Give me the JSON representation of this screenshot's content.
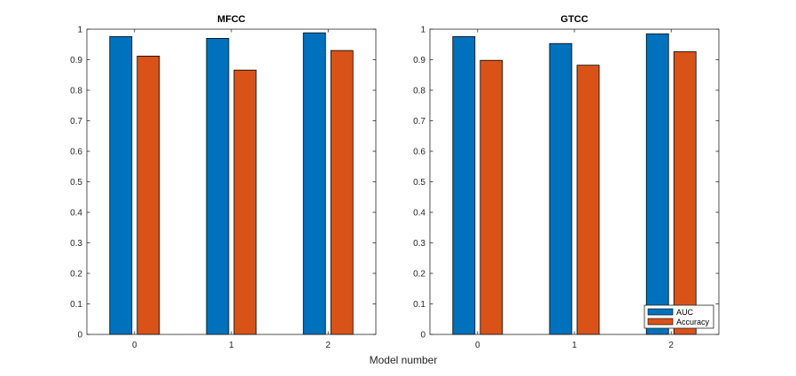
{
  "figure": {
    "xlabel": "Model number"
  },
  "colors": {
    "auc": "#0072BD",
    "accuracy": "#D95319"
  },
  "chart_data": [
    {
      "type": "bar",
      "title": "MFCC",
      "categories": [
        "0",
        "1",
        "2"
      ],
      "series": [
        {
          "name": "AUC",
          "values": [
            0.976,
            0.97,
            0.988
          ]
        },
        {
          "name": "Accuracy",
          "values": [
            0.912,
            0.866,
            0.93
          ]
        }
      ],
      "ylim": [
        0,
        1
      ],
      "yticks": [
        "0",
        "0.1",
        "0.2",
        "0.3",
        "0.4",
        "0.5",
        "0.6",
        "0.7",
        "0.8",
        "0.9",
        "1"
      ],
      "grid": false,
      "legend": null
    },
    {
      "type": "bar",
      "title": "GTCC",
      "categories": [
        "0",
        "1",
        "2"
      ],
      "series": [
        {
          "name": "AUC",
          "values": [
            0.976,
            0.953,
            0.985
          ]
        },
        {
          "name": "Accuracy",
          "values": [
            0.898,
            0.882,
            0.926
          ]
        }
      ],
      "ylim": [
        0,
        1
      ],
      "yticks": [
        "0",
        "0.1",
        "0.2",
        "0.3",
        "0.4",
        "0.5",
        "0.6",
        "0.7",
        "0.8",
        "0.9",
        "1"
      ],
      "grid": false,
      "legend": "bottom-right"
    }
  ]
}
